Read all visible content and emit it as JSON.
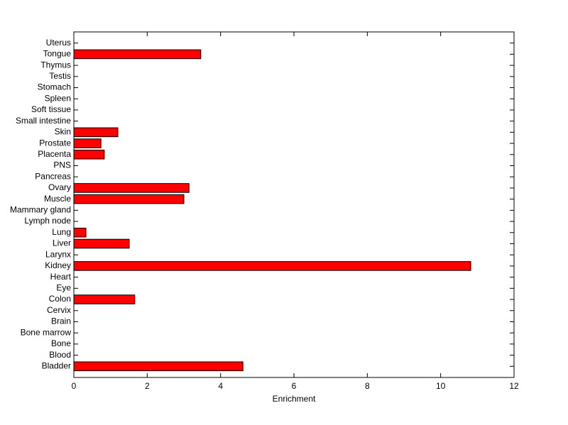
{
  "chart_data": {
    "type": "hbar",
    "xlabel": "Enrichment",
    "categories": [
      "Bladder",
      "Blood",
      "Bone",
      "Bone marrow",
      "Brain",
      "Cervix",
      "Colon",
      "Eye",
      "Heart",
      "Kidney",
      "Larynx",
      "Liver",
      "Lung",
      "Lymph node",
      "Mammary gland",
      "Muscle",
      "Ovary",
      "Pancreas",
      "PNS",
      "Placenta",
      "Prostate",
      "Skin",
      "Small intestine",
      "Soft tissue",
      "Spleen",
      "Stomach",
      "Testis",
      "Thymus",
      "Tongue",
      "Uterus"
    ],
    "values": [
      4.61,
      0,
      0,
      0,
      0,
      0,
      1.66,
      0,
      0,
      10.82,
      0,
      1.51,
      0.33,
      0,
      0,
      3.0,
      3.14,
      0,
      0,
      0.83,
      0.74,
      1.2,
      0,
      0,
      0,
      0,
      0,
      0,
      3.46,
      0
    ],
    "color": "#ff0000",
    "xlim": [
      0,
      12
    ],
    "xticks": [
      0,
      2,
      4,
      6,
      8,
      10,
      12
    ]
  }
}
